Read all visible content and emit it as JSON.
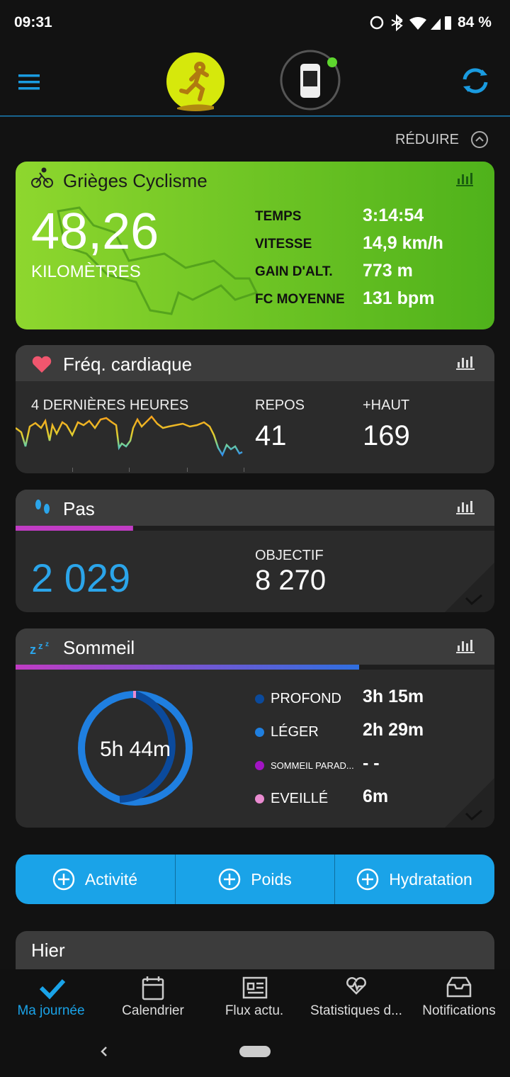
{
  "status_bar": {
    "time": "09:31",
    "battery": "84 %"
  },
  "header": {
    "collapse": "RÉDUIRE"
  },
  "activity": {
    "title": "Grièges Cyclisme",
    "distance": "48,26",
    "distance_unit": "KILOMÈTRES",
    "stats": [
      {
        "label": "TEMPS",
        "value": "3:14:54"
      },
      {
        "label": "VITESSE",
        "value": "14,9 km/h"
      },
      {
        "label": "GAIN D'ALT.",
        "value": "773 m"
      },
      {
        "label": "FC MOYENNE",
        "value": "131 bpm"
      }
    ]
  },
  "heart_rate": {
    "title": "Fréq. cardiaque",
    "period": "4 DERNIÈRES HEURES",
    "rest_label": "REPOS",
    "rest": "41",
    "max_label": "+HAUT",
    "max": "169"
  },
  "steps": {
    "title": "Pas",
    "value": 2029,
    "value_label": "2 029",
    "goal_label": "OBJECTIF",
    "goal": 8270,
    "goal_text": "8 270"
  },
  "sleep": {
    "title": "Sommeil",
    "total": "5h 44m",
    "stages": [
      {
        "label": "PROFOND",
        "value": "3h 15m",
        "color": "#0b4a9c"
      },
      {
        "label": "LÉGER",
        "value": "2h 29m",
        "color": "#1f7fe0"
      },
      {
        "label": "SOMMEIL PARAD...",
        "value": "- -",
        "color": "#a214c4"
      },
      {
        "label": "EVEILLÉ",
        "value": "6m",
        "color": "#e98bd0"
      }
    ]
  },
  "quick_add": [
    "Activité",
    "Poids",
    "Hydratation"
  ],
  "yesterday": {
    "title": "Hier"
  },
  "nav": [
    "Ma journée",
    "Calendrier",
    "Flux actu.",
    "Statistiques d...",
    "Notifications"
  ]
}
